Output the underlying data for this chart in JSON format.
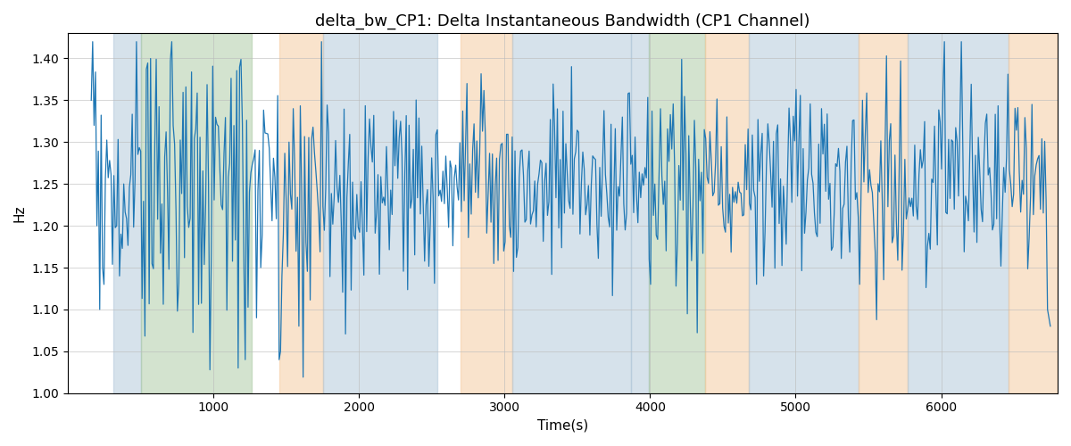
{
  "title": "delta_bw_CP1: Delta Instantaneous Bandwidth (CP1 Channel)",
  "xlabel": "Time(s)",
  "ylabel": "Hz",
  "ylim": [
    1.0,
    1.43
  ],
  "xlim": [
    0,
    6800
  ],
  "line_color": "#1f77b4",
  "line_width": 0.9,
  "bg_bands": [
    {
      "xmin": 310,
      "xmax": 500,
      "color": "#aec6d8",
      "alpha": 0.5
    },
    {
      "xmin": 500,
      "xmax": 1260,
      "color": "#a8c8a0",
      "alpha": 0.5
    },
    {
      "xmin": 1450,
      "xmax": 1750,
      "color": "#f5c99a",
      "alpha": 0.5
    },
    {
      "xmin": 1750,
      "xmax": 2540,
      "color": "#aec6d8",
      "alpha": 0.5
    },
    {
      "xmin": 2700,
      "xmax": 3050,
      "color": "#f5c99a",
      "alpha": 0.5
    },
    {
      "xmin": 3050,
      "xmax": 3870,
      "color": "#aec6d8",
      "alpha": 0.5
    },
    {
      "xmin": 3870,
      "xmax": 3990,
      "color": "#aec6d8",
      "alpha": 0.5
    },
    {
      "xmin": 3990,
      "xmax": 4380,
      "color": "#a8c8a0",
      "alpha": 0.5
    },
    {
      "xmin": 4380,
      "xmax": 4680,
      "color": "#f5c99a",
      "alpha": 0.5
    },
    {
      "xmin": 4680,
      "xmax": 5430,
      "color": "#aec6d8",
      "alpha": 0.5
    },
    {
      "xmin": 5430,
      "xmax": 5770,
      "color": "#f5c99a",
      "alpha": 0.5
    },
    {
      "xmin": 5770,
      "xmax": 6460,
      "color": "#aec6d8",
      "alpha": 0.5
    },
    {
      "xmin": 6460,
      "xmax": 6800,
      "color": "#f5c99a",
      "alpha": 0.5
    }
  ],
  "grid_color": "#bbbbbb",
  "grid_alpha": 0.7,
  "seed": 99
}
